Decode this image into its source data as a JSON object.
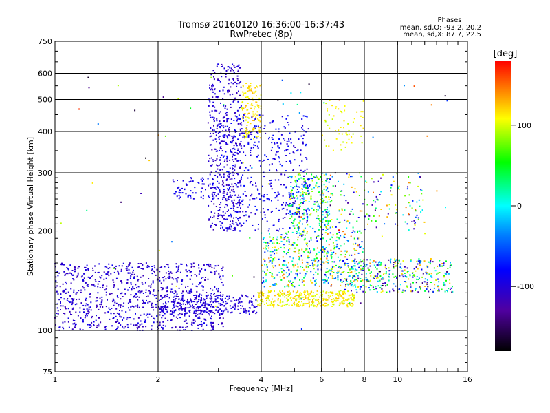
{
  "chart_data": {
    "type": "scatter",
    "title": "Tromsø 20160120 16:36:00-16:37:43",
    "subtitle": "RwPretec (8p)",
    "stats": {
      "heading": "Phases",
      "line_o": "mean, sd,O: -93.2, 20.2",
      "line_x": "mean, sd,X:  87.7, 22.5"
    },
    "xlabel": "Frequency [MHz]",
    "ylabel": "Stationary phase Virtual Height [km]",
    "x_scale": "log",
    "y_scale": "log",
    "xlim": [
      1,
      16
    ],
    "ylim": [
      75,
      750
    ],
    "x_ticks": [
      1,
      2,
      4,
      6,
      8,
      10,
      16
    ],
    "x_tick_labels": [
      "1",
      "2",
      "4",
      "6",
      "8",
      "10",
      "16"
    ],
    "y_ticks": [
      75,
      100,
      200,
      300,
      400,
      500,
      600,
      750
    ],
    "y_tick_labels": [
      "75",
      "100",
      "200",
      "300",
      "400",
      "500",
      "600",
      "750"
    ],
    "grid": true,
    "colorbar": {
      "label": "[deg]",
      "range": [
        -180,
        180
      ],
      "ticks": [
        100,
        0,
        -100
      ],
      "tick_labels": [
        "100",
        "0",
        "-100"
      ]
    },
    "clusters": [
      {
        "f": [
          1.0,
          3.1
        ],
        "h": [
          100,
          160
        ],
        "phase": [
          -120,
          -85
        ],
        "n": 900
      },
      {
        "f": [
          2.0,
          3.9
        ],
        "h": [
          112,
          128
        ],
        "phase": [
          -110,
          -90
        ],
        "n": 260
      },
      {
        "f": [
          3.9,
          7.5
        ],
        "h": [
          118,
          132
        ],
        "phase": [
          90,
          130
        ],
        "n": 330
      },
      {
        "f": [
          7.0,
          14.5
        ],
        "h": [
          130,
          165
        ],
        "phase": [
          -150,
          140
        ],
        "n": 340
      },
      {
        "f": [
          2.8,
          3.5
        ],
        "h": [
          200,
          640
        ],
        "phase": [
          -120,
          -90
        ],
        "n": 420
      },
      {
        "f": [
          3.0,
          5.5
        ],
        "h": [
          200,
          450
        ],
        "phase": [
          -110,
          -70
        ],
        "n": 460
      },
      {
        "f": [
          3.5,
          4.0
        ],
        "h": [
          380,
          560
        ],
        "phase": [
          100,
          130
        ],
        "n": 120
      },
      {
        "f": [
          4.0,
          8.0
        ],
        "h": [
          135,
          200
        ],
        "phase": [
          -100,
          150
        ],
        "n": 520
      },
      {
        "f": [
          4.8,
          6.4
        ],
        "h": [
          200,
          300
        ],
        "phase": [
          -90,
          120
        ],
        "n": 260
      },
      {
        "f": [
          6.0,
          8.0
        ],
        "h": [
          350,
          500
        ],
        "phase": [
          90,
          120
        ],
        "n": 60
      },
      {
        "f": [
          6.0,
          12.0
        ],
        "h": [
          200,
          300
        ],
        "phase": [
          -150,
          150
        ],
        "n": 160
      },
      {
        "f": [
          2.2,
          3.0
        ],
        "h": [
          250,
          290
        ],
        "phase": [
          -100,
          -80
        ],
        "n": 70
      },
      {
        "f": [
          1.0,
          14.0
        ],
        "h": [
          100,
          640
        ],
        "phase": [
          -180,
          180
        ],
        "n": 90
      }
    ]
  }
}
